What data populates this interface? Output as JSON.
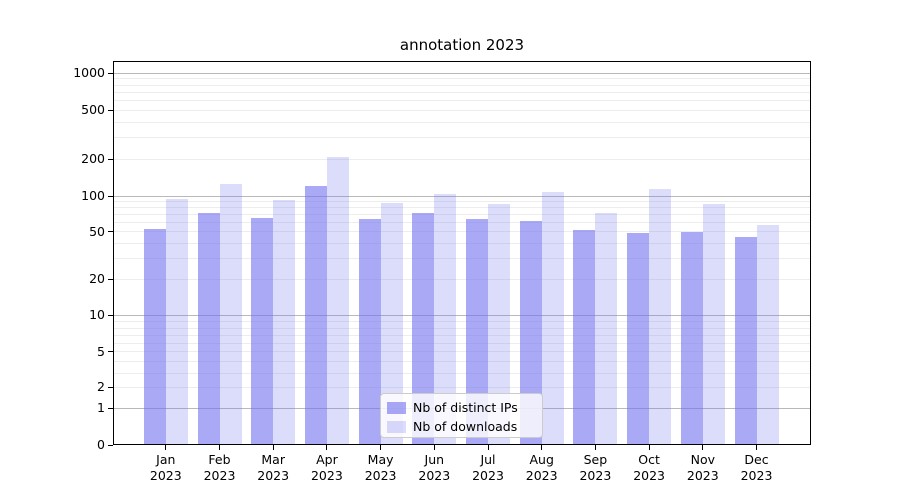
{
  "figure": {
    "background": "#ffffff",
    "title": "annotation 2023"
  },
  "chart_data": {
    "type": "bar",
    "title": "annotation 2023",
    "xlabel": "",
    "ylabel": "",
    "yscale": "symlog",
    "y_ticks": [
      0,
      1,
      2,
      5,
      10,
      20,
      50,
      100,
      200,
      500,
      1000
    ],
    "ylim": [
      0,
      1300
    ],
    "grid": "horizontal; dark major gridlines at 1,10,100,1000; light minor gridlines at 2-9 per decade",
    "legend_position": "lower center",
    "categories": [
      "Jan",
      "Feb",
      "Mar",
      "Apr",
      "May",
      "Jun",
      "Jul",
      "Aug",
      "Sep",
      "Oct",
      "Nov",
      "Dec"
    ],
    "year_label": "2023",
    "series": [
      {
        "name": "Nb of distinct IPs",
        "color": "rgba(112,112,238,0.6)",
        "values": [
          53,
          72,
          65,
          121,
          64,
          72,
          64,
          62,
          52,
          49,
          50,
          45
        ]
      },
      {
        "name": "Nb of downloads",
        "color": "rgba(112,112,238,0.245)",
        "values": [
          95,
          125,
          93,
          206,
          87,
          104,
          85,
          108,
          72,
          113,
          85,
          57
        ]
      }
    ]
  },
  "colors": {
    "major_grid": "#b9b9b9",
    "minor_grid": "#ededed",
    "spine": "#000000",
    "bar_dark": "rgba(112,112,238,0.6)",
    "bar_light": "rgba(112,112,238,0.245)"
  }
}
